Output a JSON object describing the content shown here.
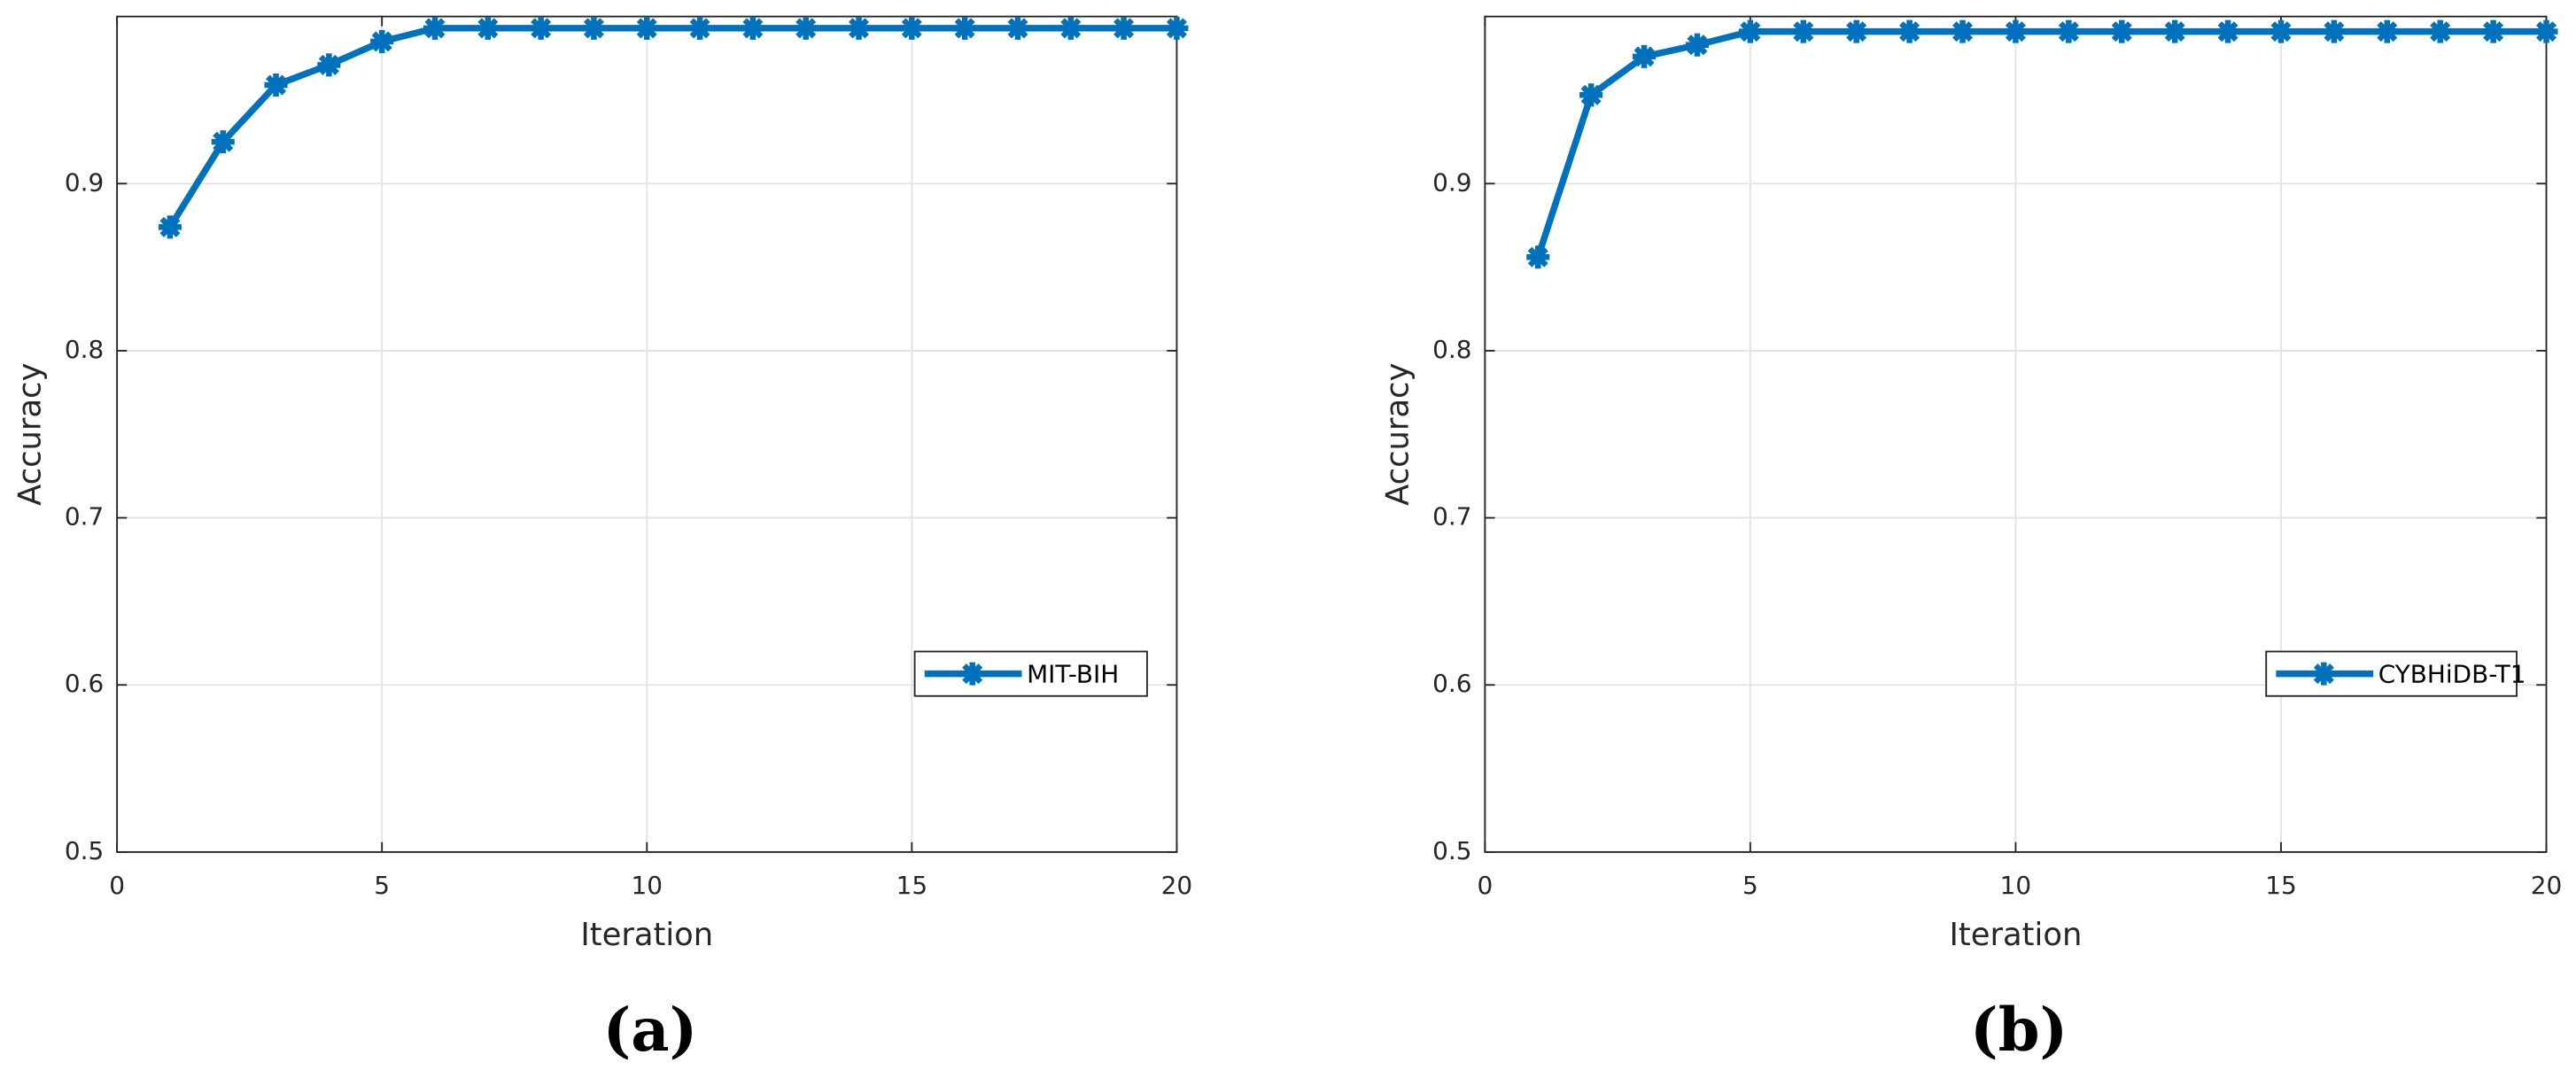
{
  "chart_data": [
    {
      "type": "line",
      "label": "(a)",
      "xlabel": "Iteration",
      "ylabel": "Accuracy",
      "x": [
        1,
        2,
        3,
        4,
        5,
        6,
        7,
        8,
        9,
        10,
        11,
        12,
        13,
        14,
        15,
        16,
        17,
        18,
        19,
        20
      ],
      "series": [
        {
          "name": "MIT-BIH",
          "color": "#0072bd",
          "values": [
            0.874,
            0.925,
            0.959,
            0.971,
            0.985,
            0.993,
            0.993,
            0.993,
            0.993,
            0.993,
            0.993,
            0.993,
            0.993,
            0.993,
            0.993,
            0.993,
            0.993,
            0.993,
            0.993,
            0.993
          ]
        }
      ],
      "xlim": [
        0,
        20
      ],
      "xticks": [
        0,
        5,
        10,
        15,
        20
      ],
      "ylim": [
        0.5,
        1
      ],
      "yticks": [
        0.5,
        0.6,
        0.7,
        0.8,
        0.9
      ],
      "grid": true,
      "legend": "east"
    },
    {
      "type": "line",
      "label": "(b)",
      "xlabel": "Iteration",
      "ylabel": "Accuracy",
      "x": [
        1,
        2,
        3,
        4,
        5,
        6,
        7,
        8,
        9,
        10,
        11,
        12,
        13,
        14,
        15,
        16,
        17,
        18,
        19,
        20
      ],
      "series": [
        {
          "name": "CYBHiDB-T1",
          "color": "#0072bd",
          "values": [
            0.856,
            0.953,
            0.976,
            0.983,
            0.991,
            0.991,
            0.991,
            0.991,
            0.991,
            0.991,
            0.991,
            0.991,
            0.991,
            0.991,
            0.991,
            0.991,
            0.991,
            0.991,
            0.991,
            0.991
          ]
        }
      ],
      "xlim": [
        0,
        20
      ],
      "xticks": [
        0,
        5,
        10,
        15,
        20
      ],
      "ylim": [
        0.5,
        1
      ],
      "yticks": [
        0.5,
        0.6,
        0.7,
        0.8,
        0.9
      ],
      "grid": true,
      "legend": "east"
    }
  ]
}
